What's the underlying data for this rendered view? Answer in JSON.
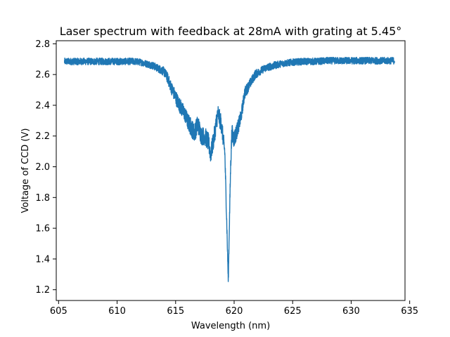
{
  "chart_data": {
    "type": "line",
    "title": "Laser spectrum with feedback at 28mA with grating at 5.45°",
    "xlabel": "Wavelength (nm)",
    "ylabel": "Voltage of CCD (V)",
    "xlim": [
      604.8,
      634.6
    ],
    "ylim": [
      1.13,
      2.82
    ],
    "xticks": [
      605,
      610,
      615,
      620,
      625,
      630,
      635
    ],
    "xtick_labels": [
      "605",
      "610",
      "615",
      "620",
      "625",
      "630",
      "635"
    ],
    "yticks": [
      1.2,
      1.4,
      1.6,
      1.8,
      2.0,
      2.2,
      2.4,
      2.6,
      2.8
    ],
    "ytick_labels": [
      "1.2",
      "1.4",
      "1.6",
      "1.8",
      "2.0",
      "2.2",
      "2.4",
      "2.6",
      "2.8"
    ],
    "grid": false,
    "series": [
      {
        "color": "#1f77b4",
        "x": [
          605.5,
          606.5,
          607.5,
          608.5,
          609.5,
          610.5,
          611.5,
          612.0,
          612.5,
          613.0,
          613.5,
          614.0,
          614.3,
          614.6,
          614.9,
          615.2,
          615.5,
          615.8,
          616.0,
          616.3,
          616.6,
          616.9,
          617.2,
          617.5,
          617.8,
          618.0,
          618.3,
          618.6,
          618.9,
          619.2,
          619.4,
          619.5,
          619.6,
          619.7,
          619.8,
          620.0,
          620.3,
          620.6,
          620.9,
          621.2,
          621.5,
          621.8,
          622.2,
          622.6,
          623.0,
          623.5,
          624.0,
          625.0,
          626.0,
          627.0,
          628.0,
          629.0,
          630.0,
          631.0,
          632.0,
          633.0,
          633.7
        ],
        "y": [
          2.685,
          2.685,
          2.685,
          2.685,
          2.685,
          2.685,
          2.685,
          2.68,
          2.67,
          2.66,
          2.64,
          2.62,
          2.58,
          2.52,
          2.47,
          2.42,
          2.38,
          2.34,
          2.3,
          2.26,
          2.22,
          2.28,
          2.2,
          2.2,
          2.16,
          2.08,
          2.2,
          2.35,
          2.28,
          2.1,
          1.55,
          1.25,
          1.65,
          2.0,
          2.22,
          2.18,
          2.25,
          2.33,
          2.48,
          2.52,
          2.56,
          2.6,
          2.62,
          2.64,
          2.65,
          2.66,
          2.67,
          2.68,
          2.685,
          2.685,
          2.69,
          2.69,
          2.69,
          2.69,
          2.69,
          2.69,
          2.69
        ],
        "noise": [
          0.045,
          0.045,
          0.045,
          0.045,
          0.045,
          0.045,
          0.045,
          0.045,
          0.045,
          0.05,
          0.05,
          0.06,
          0.07,
          0.08,
          0.09,
          0.1,
          0.1,
          0.1,
          0.11,
          0.12,
          0.12,
          0.12,
          0.12,
          0.12,
          0.12,
          0.12,
          0.12,
          0.12,
          0.12,
          0.1,
          0.08,
          0.06,
          0.08,
          0.1,
          0.12,
          0.12,
          0.1,
          0.09,
          0.08,
          0.07,
          0.06,
          0.06,
          0.05,
          0.05,
          0.05,
          0.05,
          0.045,
          0.045,
          0.045,
          0.045,
          0.045,
          0.045,
          0.045,
          0.045,
          0.045,
          0.045,
          0.045
        ]
      }
    ]
  }
}
